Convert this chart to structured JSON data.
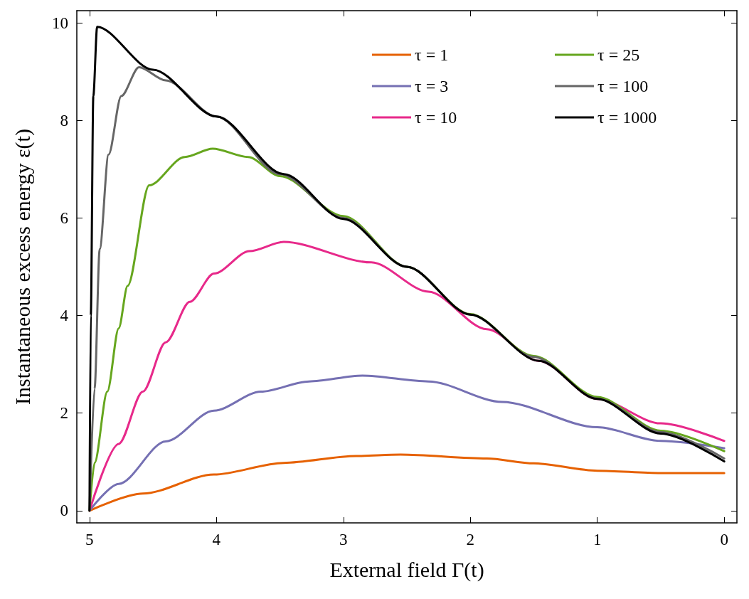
{
  "chart_data": {
    "type": "line",
    "xlabel": "External field Γ(t)",
    "ylabel": "Instantaneous excess energy ε(t)",
    "xlim": [
      5.1,
      -0.1
    ],
    "xticks": [
      5,
      4,
      3,
      2,
      1,
      0
    ],
    "ylim": [
      -0.25,
      10.25
    ],
    "yticks": [
      0,
      2,
      4,
      6,
      8,
      10
    ],
    "grid": false,
    "legend": "top right",
    "marker": "none",
    "line_style": "solid",
    "series": [
      {
        "name": "τ = 1",
        "color": "#e66101",
        "x": [
          5,
          4.58,
          4.02,
          3.47,
          2.9,
          2.55,
          1.87,
          1.5,
          1.0,
          0.5,
          0
        ],
        "values": [
          0,
          0.35,
          0.74,
          0.98,
          1.12,
          1.15,
          1.07,
          0.97,
          0.82,
          0.77,
          0.77
        ]
      },
      {
        "name": "τ = 3",
        "color": "#7570b3",
        "x": [
          5,
          4.77,
          4.4,
          4.02,
          3.65,
          3.27,
          2.85,
          2.33,
          1.75,
          1.0,
          0.5,
          0
        ],
        "values": [
          0,
          0.55,
          1.42,
          2.05,
          2.44,
          2.65,
          2.77,
          2.65,
          2.23,
          1.71,
          1.43,
          1.28
        ]
      },
      {
        "name": "τ = 10",
        "color": "#e7298a",
        "x": [
          5,
          4.77,
          4.58,
          4.4,
          4.21,
          4.02,
          3.74,
          3.47,
          2.78,
          2.33,
          1.87,
          1.46,
          1.0,
          0.5,
          0
        ],
        "values": [
          0,
          1.37,
          2.44,
          3.45,
          4.28,
          4.86,
          5.32,
          5.51,
          5.09,
          4.49,
          3.72,
          3.07,
          2.29,
          1.79,
          1.43
        ]
      },
      {
        "name": "τ = 25",
        "color": "#66a61e",
        "x": [
          5,
          4.96,
          4.86,
          4.77,
          4.7,
          4.53,
          4.25,
          4.03,
          3.75,
          3.5,
          3.0,
          2.5,
          2.0,
          1.5,
          1.0,
          0.5,
          0
        ],
        "values": [
          0,
          0.98,
          2.44,
          3.74,
          4.61,
          6.67,
          7.25,
          7.42,
          7.25,
          6.86,
          6.04,
          5.0,
          4.03,
          3.17,
          2.33,
          1.64,
          1.22
        ]
      },
      {
        "name": "τ = 100",
        "color": "#666666",
        "x": [
          5,
          4.96,
          4.92,
          4.85,
          4.75,
          4.61,
          4.4,
          4.0,
          3.5,
          3.0,
          2.5,
          2.0,
          1.5,
          1.0,
          0.5,
          0
        ],
        "values": [
          0,
          2.5,
          5.36,
          7.3,
          8.5,
          9.09,
          8.82,
          8.08,
          6.9,
          6.0,
          5.0,
          4.02,
          3.15,
          2.3,
          1.61,
          1.07
        ]
      },
      {
        "name": "τ = 1000",
        "color": "#000000",
        "x": [
          5,
          4.99,
          4.97,
          4.94,
          4.5,
          4.0,
          3.47,
          3.0,
          2.5,
          2.0,
          1.46,
          1.0,
          0.5,
          0
        ],
        "values": [
          0,
          4,
          8.5,
          9.92,
          9.04,
          8.08,
          6.9,
          5.98,
          5.0,
          4.02,
          3.07,
          2.29,
          1.58,
          1.01
        ]
      }
    ]
  }
}
